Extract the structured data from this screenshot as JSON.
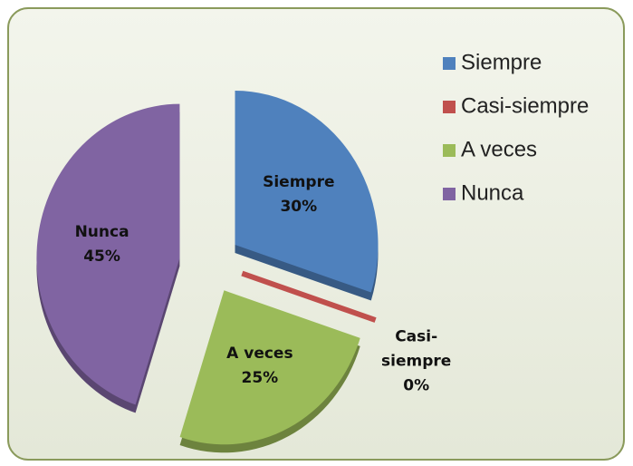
{
  "chart_data": {
    "type": "pie",
    "categories": [
      "Siempre",
      "Casi-siempre",
      "A veces",
      "Nunca"
    ],
    "values": [
      30,
      0,
      25,
      45
    ],
    "value_labels": [
      "30%",
      "0%",
      "25%",
      "45%"
    ],
    "colors": [
      "#4f81bd",
      "#c0504d",
      "#9bbb59",
      "#8064a2"
    ],
    "legend": "right"
  }
}
